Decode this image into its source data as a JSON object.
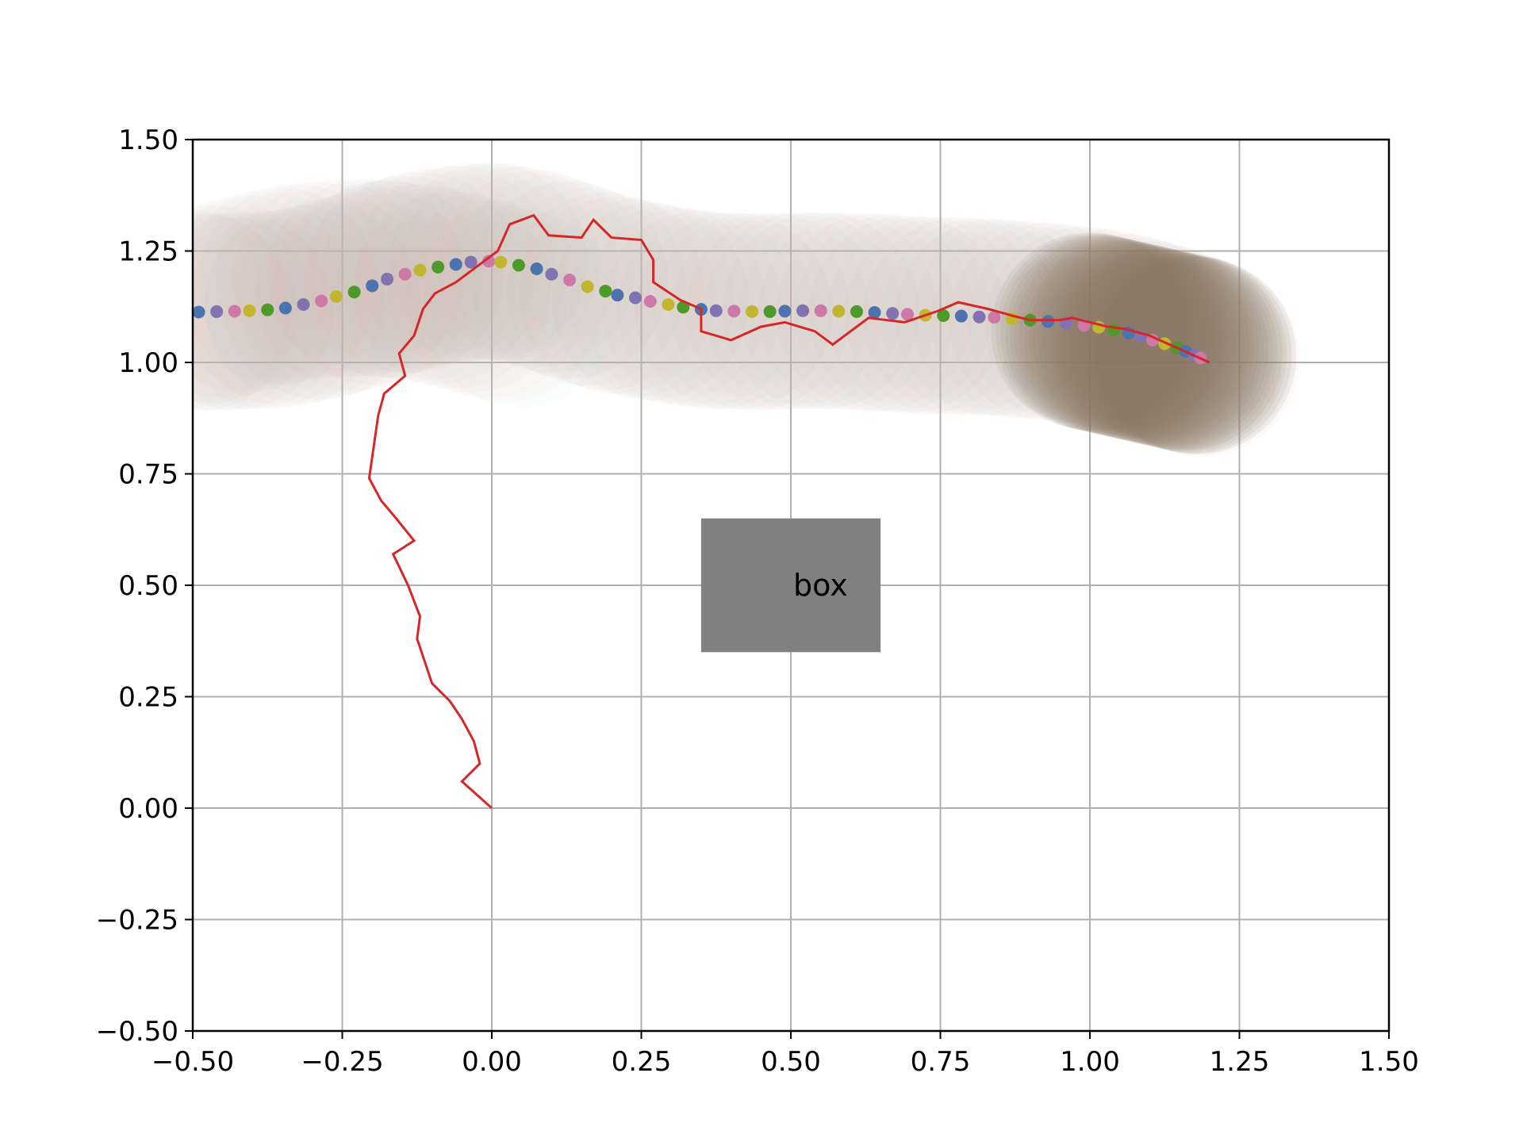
{
  "chart_data": {
    "type": "line",
    "title": "",
    "xlabel": "",
    "ylabel": "",
    "xlim": [
      -0.5,
      1.5
    ],
    "ylim": [
      -0.5,
      1.5
    ],
    "x_ticks": [
      -0.5,
      -0.25,
      0.0,
      0.25,
      0.5,
      0.75,
      1.0,
      1.25,
      1.5
    ],
    "y_ticks": [
      -0.5,
      -0.25,
      0.0,
      0.25,
      0.5,
      0.75,
      1.0,
      1.25,
      1.5
    ],
    "x_tick_labels": [
      "−0.50",
      "−0.25",
      "0.00",
      "0.25",
      "0.50",
      "0.75",
      "1.00",
      "1.25",
      "1.50"
    ],
    "y_tick_labels": [
      "−0.50",
      "−0.25",
      "0.00",
      "0.25",
      "0.50",
      "0.75",
      "1.00",
      "1.25",
      "1.50"
    ],
    "grid": true,
    "series": [
      {
        "kind": "line",
        "color": "#d62728",
        "points": [
          [
            0.0,
            0.0
          ],
          [
            -0.05,
            0.06
          ],
          [
            -0.02,
            0.1
          ],
          [
            -0.03,
            0.15
          ],
          [
            -0.05,
            0.2
          ],
          [
            -0.07,
            0.24
          ],
          [
            -0.1,
            0.28
          ],
          [
            -0.125,
            0.38
          ],
          [
            -0.12,
            0.43
          ],
          [
            -0.14,
            0.5
          ],
          [
            -0.165,
            0.57
          ],
          [
            -0.13,
            0.6
          ],
          [
            -0.16,
            0.65
          ],
          [
            -0.185,
            0.69
          ],
          [
            -0.205,
            0.74
          ],
          [
            -0.19,
            0.88
          ],
          [
            -0.18,
            0.93
          ],
          [
            -0.145,
            0.97
          ],
          [
            -0.155,
            1.02
          ],
          [
            -0.13,
            1.06
          ],
          [
            -0.115,
            1.12
          ],
          [
            -0.095,
            1.155
          ],
          [
            -0.06,
            1.18
          ],
          [
            -0.025,
            1.215
          ],
          [
            0.01,
            1.25
          ],
          [
            0.03,
            1.31
          ],
          [
            0.07,
            1.33
          ],
          [
            0.095,
            1.285
          ],
          [
            0.15,
            1.28
          ],
          [
            0.17,
            1.32
          ],
          [
            0.2,
            1.28
          ],
          [
            0.25,
            1.275
          ],
          [
            0.27,
            1.23
          ],
          [
            0.27,
            1.18
          ],
          [
            0.315,
            1.14
          ],
          [
            0.35,
            1.12
          ],
          [
            0.35,
            1.07
          ],
          [
            0.4,
            1.05
          ],
          [
            0.45,
            1.08
          ],
          [
            0.49,
            1.09
          ],
          [
            0.54,
            1.07
          ],
          [
            0.57,
            1.04
          ],
          [
            0.63,
            1.1
          ],
          [
            0.69,
            1.09
          ],
          [
            0.745,
            1.115
          ],
          [
            0.78,
            1.135
          ],
          [
            0.83,
            1.12
          ],
          [
            0.87,
            1.105
          ],
          [
            0.9,
            1.095
          ],
          [
            0.95,
            1.095
          ],
          [
            0.97,
            1.1
          ],
          [
            1.03,
            1.08
          ],
          [
            1.06,
            1.075
          ],
          [
            1.1,
            1.06
          ],
          [
            1.15,
            1.03
          ],
          [
            1.2,
            1.0
          ]
        ]
      },
      {
        "kind": "dotted",
        "colors": [
          "#4c72b0",
          "#8172b2",
          "#cc79a7",
          "#c2b52f",
          "#4c9a2a"
        ],
        "points": [
          [
            -0.49,
            1.113
          ],
          [
            -0.46,
            1.114
          ],
          [
            -0.43,
            1.115
          ],
          [
            -0.405,
            1.116
          ],
          [
            -0.375,
            1.118
          ],
          [
            -0.345,
            1.122
          ],
          [
            -0.315,
            1.13
          ],
          [
            -0.285,
            1.138
          ],
          [
            -0.26,
            1.148
          ],
          [
            -0.23,
            1.158
          ],
          [
            -0.2,
            1.172
          ],
          [
            -0.175,
            1.187
          ],
          [
            -0.145,
            1.198
          ],
          [
            -0.12,
            1.207
          ],
          [
            -0.09,
            1.214
          ],
          [
            -0.06,
            1.22
          ],
          [
            -0.035,
            1.225
          ],
          [
            -0.005,
            1.227
          ],
          [
            0.015,
            1.225
          ],
          [
            0.045,
            1.218
          ],
          [
            0.075,
            1.21
          ],
          [
            0.1,
            1.198
          ],
          [
            0.13,
            1.185
          ],
          [
            0.16,
            1.17
          ],
          [
            0.19,
            1.16
          ],
          [
            0.21,
            1.151
          ],
          [
            0.24,
            1.145
          ],
          [
            0.265,
            1.137
          ],
          [
            0.295,
            1.13
          ],
          [
            0.32,
            1.124
          ],
          [
            0.35,
            1.119
          ],
          [
            0.375,
            1.116
          ],
          [
            0.405,
            1.115
          ],
          [
            0.435,
            1.114
          ],
          [
            0.465,
            1.114
          ],
          [
            0.49,
            1.115
          ],
          [
            0.52,
            1.116
          ],
          [
            0.55,
            1.116
          ],
          [
            0.58,
            1.115
          ],
          [
            0.61,
            1.114
          ],
          [
            0.64,
            1.112
          ],
          [
            0.67,
            1.11
          ],
          [
            0.695,
            1.108
          ],
          [
            0.725,
            1.106
          ],
          [
            0.755,
            1.105
          ],
          [
            0.785,
            1.104
          ],
          [
            0.815,
            1.102
          ],
          [
            0.84,
            1.101
          ],
          [
            0.87,
            1.098
          ],
          [
            0.9,
            1.095
          ],
          [
            0.93,
            1.092
          ],
          [
            0.96,
            1.088
          ],
          [
            0.99,
            1.083
          ],
          [
            1.015,
            1.079
          ],
          [
            1.04,
            1.073
          ],
          [
            1.065,
            1.066
          ],
          [
            1.085,
            1.058
          ],
          [
            1.105,
            1.05
          ],
          [
            1.125,
            1.042
          ],
          [
            1.145,
            1.033
          ],
          [
            1.16,
            1.025
          ],
          [
            1.175,
            1.016
          ],
          [
            1.185,
            1.01
          ]
        ]
      }
    ],
    "halo_colors": [
      "#e8a897",
      "#9fd0cf",
      "#d7a59a",
      "#b8c7c4",
      "#e7b3a3"
    ],
    "dark_blob_color": "#8a7260",
    "annotations": [
      {
        "type": "box",
        "text": "box",
        "x0": 0.35,
        "x1": 0.65,
        "y0": 0.35,
        "y1": 0.65,
        "fill": "#808080",
        "text_anchor": [
          0.5,
          0.5
        ]
      }
    ]
  }
}
